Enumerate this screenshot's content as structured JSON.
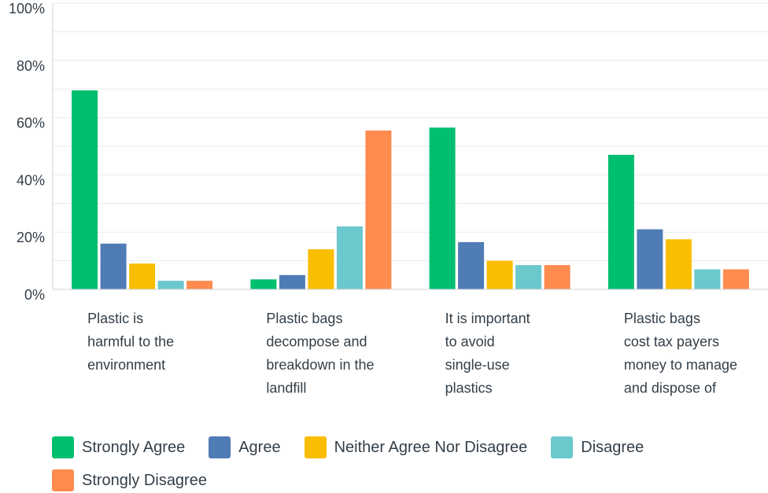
{
  "chart_data": {
    "type": "bar",
    "categories": [
      "Plastic is harmful to the environment",
      "Plastic bags decompose and breakdown in the landfill",
      "It is important to avoid single-use plastics",
      "Plastic bags cost tax payers money to manage and dispose of"
    ],
    "category_lines": [
      [
        "Plastic is",
        "harmful to the",
        "environment"
      ],
      [
        "Plastic bags",
        "decompose and",
        "breakdown in the",
        "landfill"
      ],
      [
        "It is important",
        "to avoid",
        "single-use",
        "plastics"
      ],
      [
        "Plastic bags",
        "cost tax payers",
        "money to manage",
        "and dispose of"
      ]
    ],
    "series": [
      {
        "name": "Strongly Agree",
        "color": "#00bf6f",
        "values": [
          69.5,
          3.5,
          56.5,
          47
        ]
      },
      {
        "name": "Agree",
        "color": "#507cb6",
        "values": [
          16,
          5,
          16.5,
          21
        ]
      },
      {
        "name": "Neither Agree Nor Disagree",
        "color": "#f9be00",
        "values": [
          9,
          14,
          10,
          17.5
        ]
      },
      {
        "name": "Disagree",
        "color": "#6bc8cd",
        "values": [
          3,
          22,
          8.5,
          7
        ]
      },
      {
        "name": "Strongly Disagree",
        "color": "#ff8b4f",
        "values": [
          3,
          55.5,
          8.5,
          7
        ]
      }
    ],
    "yticks": [
      "0%",
      "20%",
      "40%",
      "60%",
      "80%",
      "100%"
    ],
    "ylim": [
      0,
      100
    ],
    "grid": true,
    "legend": "bottom"
  }
}
